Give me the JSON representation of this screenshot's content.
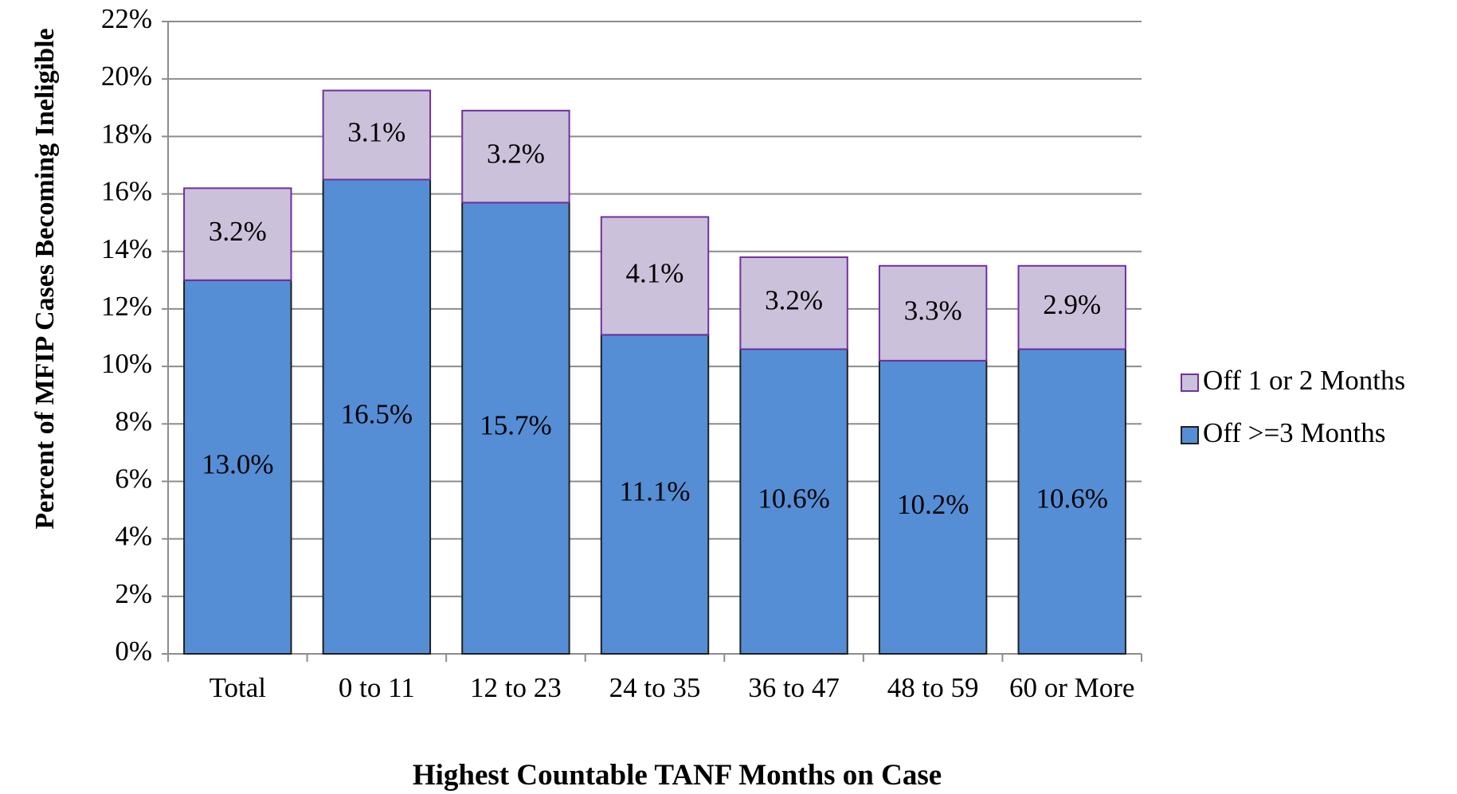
{
  "chart_data": {
    "type": "stacked_bar",
    "xlabel": "Highest Countable TANF Months on Case",
    "ylabel": "Percent of MFIP Cases Becoming Ineligible",
    "categories": [
      "Total",
      "0 to 11",
      "12 to 23",
      "24 to 35",
      "36 to 47",
      "48 to 59",
      "60 or More"
    ],
    "series": [
      {
        "name": "Off >=3 Months",
        "color": "#558ed5",
        "edge": "#1f1f1f",
        "values": [
          13.0,
          16.5,
          15.7,
          11.1,
          10.6,
          10.2,
          10.6
        ],
        "value_labels": [
          "13.0%",
          "16.5%",
          "15.7%",
          "11.1%",
          "10.6%",
          "10.2%",
          "10.6%"
        ]
      },
      {
        "name": "Off 1 or 2 Months",
        "color": "#ccc1da",
        "edge": "#7030a0",
        "values": [
          3.2,
          3.1,
          3.2,
          4.1,
          3.2,
          3.3,
          2.9
        ],
        "value_labels": [
          "3.2%",
          "3.1%",
          "3.2%",
          "4.1%",
          "3.2%",
          "3.3%",
          "2.9%"
        ]
      }
    ],
    "ylim": [
      0,
      22
    ],
    "yticks": [
      {
        "value": 0,
        "label": "0%"
      },
      {
        "value": 2,
        "label": "2%"
      },
      {
        "value": 4,
        "label": "4%"
      },
      {
        "value": 6,
        "label": "6%"
      },
      {
        "value": 8,
        "label": "8%"
      },
      {
        "value": 10,
        "label": "10%"
      },
      {
        "value": 12,
        "label": "12%"
      },
      {
        "value": 14,
        "label": "14%"
      },
      {
        "value": 16,
        "label": "16%"
      },
      {
        "value": 18,
        "label": "18%"
      },
      {
        "value": 20,
        "label": "20%"
      },
      {
        "value": 22,
        "label": "22%"
      }
    ],
    "grid": true,
    "legend": "right"
  }
}
